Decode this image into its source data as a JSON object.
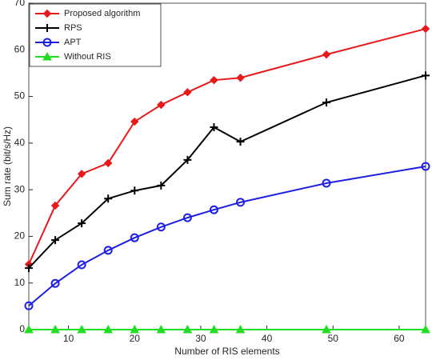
{
  "chart_data": {
    "type": "line",
    "xlabel": "Number of RIS elements",
    "ylabel": "Sum rate (bit/s/Hz)",
    "x": [
      4,
      8,
      12,
      16,
      20,
      24,
      28,
      32,
      36,
      49,
      64
    ],
    "series": [
      {
        "name": "Proposed algorithm",
        "color": "#e8191b",
        "marker": "diamond",
        "values": [
          14,
          26.6,
          33.4,
          35.7,
          44.6,
          48.2,
          50.9,
          53.5,
          54,
          59,
          64.5
        ]
      },
      {
        "name": "RPS",
        "color": "#000000",
        "marker": "plus",
        "values": [
          13.2,
          19.2,
          22.8,
          28.1,
          29.8,
          30.9,
          36.4,
          43.4,
          40.3,
          48.7,
          54.5
        ]
      },
      {
        "name": "APT",
        "color": "#1f1fe0",
        "marker": "circle",
        "values": [
          5.1,
          9.9,
          13.9,
          17,
          19.7,
          22,
          24,
          25.7,
          27.3,
          31.4,
          35
        ]
      },
      {
        "name": "Without RIS",
        "color": "#22dd22",
        "marker": "triangle",
        "values": [
          0,
          0,
          0,
          0,
          0,
          0,
          0,
          0,
          0,
          0,
          0
        ]
      }
    ],
    "xlim": [
      4,
      64
    ],
    "xticks": [
      10,
      20,
      30,
      40,
      50,
      60
    ],
    "ylim": [
      0,
      70
    ],
    "yticks": [
      0,
      10,
      20,
      30,
      40,
      50,
      60,
      70
    ],
    "legend": "upper left"
  }
}
